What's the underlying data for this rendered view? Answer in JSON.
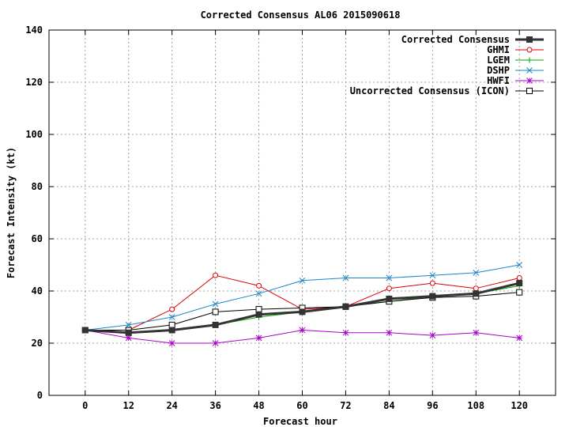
{
  "chart_data": {
    "type": "line",
    "title": "Corrected Consensus  AL06 2015090618",
    "xlabel": "Forecast hour",
    "ylabel": "Forecast Intensity (kt)",
    "xlim": [
      -10,
      130
    ],
    "ylim": [
      0,
      140
    ],
    "xticks": [
      0,
      12,
      24,
      36,
      48,
      60,
      72,
      84,
      96,
      108,
      120
    ],
    "yticks": [
      0,
      20,
      40,
      60,
      80,
      100,
      120,
      140
    ],
    "grid": true,
    "legend_position": "top-right",
    "x": [
      0,
      12,
      24,
      36,
      48,
      60,
      72,
      84,
      96,
      108,
      120
    ],
    "series": [
      {
        "name": "Corrected Consensus",
        "values": [
          25,
          24,
          25,
          27,
          31,
          32,
          34,
          37,
          38,
          39,
          43
        ],
        "color": "#333333",
        "marker": "filled-square",
        "width": 3
      },
      {
        "name": "GHMI",
        "values": [
          25,
          25,
          33,
          46,
          42,
          33,
          34,
          41,
          43,
          41,
          45
        ],
        "color": "#dd0000",
        "marker": "circle",
        "width": 1
      },
      {
        "name": "LGEM",
        "values": [
          25,
          24,
          25,
          27,
          30,
          32,
          34,
          36,
          38,
          39,
          42
        ],
        "color": "#00aa00",
        "marker": "plus",
        "width": 1
      },
      {
        "name": "DSHP",
        "values": [
          25,
          27,
          30,
          35,
          39,
          44,
          45,
          45,
          46,
          47,
          50
        ],
        "color": "#1a86c8",
        "marker": "x",
        "width": 1
      },
      {
        "name": "HWFI",
        "values": [
          25,
          22,
          20,
          20,
          22,
          25,
          24,
          24,
          23,
          24,
          22
        ],
        "color": "#aa00cc",
        "marker": "star",
        "width": 1
      },
      {
        "name": "Uncorrected Consensus (ICON)",
        "values": [
          25,
          25,
          27,
          32,
          33,
          33.5,
          34,
          36,
          37.5,
          38,
          39.5
        ],
        "color": "#000000",
        "marker": "open-square",
        "width": 1
      }
    ]
  }
}
